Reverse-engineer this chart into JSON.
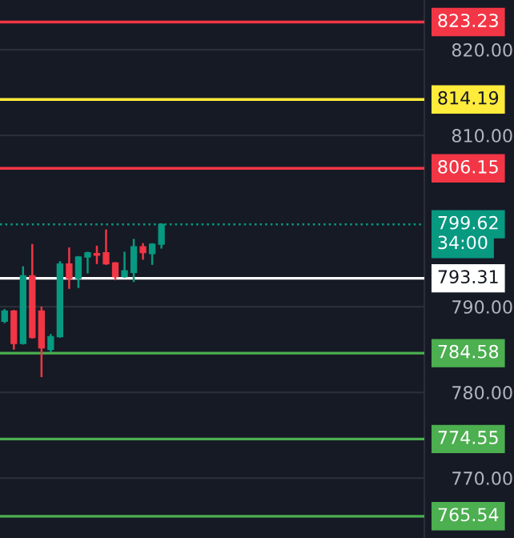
{
  "chart_data": {
    "type": "candlestick",
    "categories": [
      null,
      null,
      null,
      null,
      null,
      null,
      null,
      null,
      null,
      null,
      null,
      null,
      null,
      null,
      null,
      null,
      null,
      null,
      null,
      null,
      null,
      null,
      null,
      null,
      null,
      null,
      null,
      null,
      null,
      null,
      null,
      null,
      null,
      null,
      null,
      null,
      null,
      null,
      null,
      null,
      null,
      null,
      null,
      null,
      null,
      null
    ],
    "ohlc": [
      [
        788.3,
        789.6,
        788.2,
        789.5
      ],
      [
        789.5,
        789.5,
        785.1,
        785.7
      ],
      [
        785.7,
        794.6,
        785.7,
        793.6
      ],
      [
        793.6,
        797.2,
        786.4,
        786.4
      ],
      [
        789.5,
        789.9,
        781.9,
        785.2
      ],
      [
        785.0,
        786.7,
        784.8,
        786.5
      ],
      [
        786.5,
        795.2,
        786.5,
        795.0
      ],
      [
        795.0,
        796.8,
        792.2,
        793.3
      ],
      [
        793.3,
        795.8,
        792.3,
        795.8
      ],
      [
        795.8,
        796.3,
        794.0,
        796.3
      ],
      [
        796.2,
        797.0,
        795.1,
        796.0
      ],
      [
        796.3,
        798.9,
        795.0,
        795.0
      ],
      [
        795.1,
        795.1,
        793.2,
        793.5
      ],
      [
        793.5,
        796.3,
        793.5,
        794.2
      ],
      [
        794.0,
        797.8,
        793.0,
        797.0
      ],
      [
        797.0,
        797.3,
        795.6,
        796.3
      ],
      [
        796.2,
        797.3,
        795.0,
        797.3
      ],
      [
        797.3,
        799.62,
        796.9,
        799.62
      ],
      null,
      null,
      null,
      null,
      null,
      null,
      null,
      null,
      null,
      null,
      null,
      null,
      null,
      null,
      null,
      null,
      null,
      null,
      null,
      null,
      null,
      null,
      null,
      null,
      null,
      null,
      null,
      null
    ],
    "colors": [
      "#089981",
      "#f23645",
      "#089981",
      "#f23645",
      "#f23645",
      "#089981",
      "#089981",
      "#f23645",
      "#089981",
      "#089981",
      "#f23645",
      "#f23645",
      "#f23645",
      "#089981",
      "#089981",
      "#f23645",
      "#089981",
      "#089981",
      null,
      null,
      null,
      null,
      null,
      null,
      null,
      null,
      null,
      null,
      null,
      null,
      null,
      null,
      null,
      null,
      null,
      null,
      null,
      null,
      null,
      null,
      null,
      null,
      null,
      null,
      null,
      null
    ],
    "ylim": [
      763.0,
      825.8
    ],
    "yticks": [
      {
        "value": 770,
        "label": "770.00"
      },
      {
        "value": 780,
        "label": "780.00"
      },
      {
        "value": 790,
        "label": "790.00"
      },
      {
        "value": 810,
        "label": "810.00"
      },
      {
        "value": 820,
        "label": "820.00"
      }
    ],
    "tick_labels": "y",
    "grid": "y",
    "ref_lines": [
      {
        "axis": "y",
        "value": 823.23,
        "label": "823.23",
        "color": "#f23645",
        "line_style": "solid"
      },
      {
        "axis": "y",
        "value": 814.19,
        "label": "814.19",
        "color": "#ffeb3b",
        "line_style": "solid"
      },
      {
        "axis": "y",
        "value": 806.15,
        "label": "806.15",
        "color": "#f23645",
        "line_style": "solid"
      },
      {
        "axis": "y",
        "value": 799.62,
        "label": "799.62",
        "color": "#089981",
        "line_style": "dotted"
      },
      {
        "axis": "y",
        "value": 793.31,
        "label": "793.31",
        "color": "#ffffff",
        "line_style": "solid"
      },
      {
        "axis": "y",
        "value": 784.58,
        "label": "784.58",
        "color": "#4caf50",
        "line_style": "solid"
      },
      {
        "axis": "y",
        "value": 774.55,
        "label": "774.55",
        "color": "#4caf50",
        "line_style": "solid"
      },
      {
        "axis": "y",
        "value": 765.54,
        "label": "765.54",
        "color": "#4caf50",
        "line_style": "solid"
      }
    ],
    "annotations": [
      "34:00"
    ]
  }
}
